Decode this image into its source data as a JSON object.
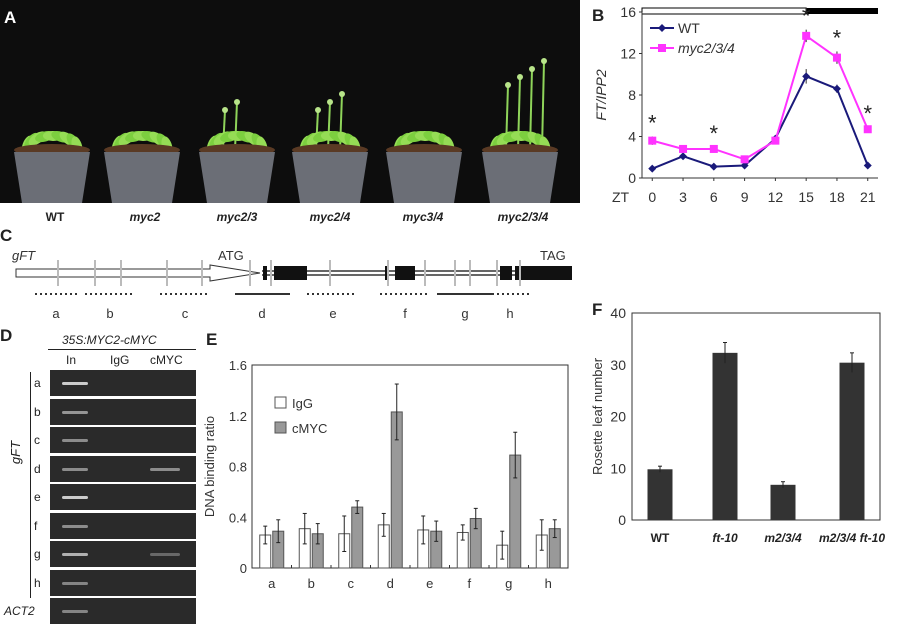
{
  "panels": {
    "A": {
      "label": "A",
      "genotypes": [
        "WT",
        "myc2",
        "myc2/3",
        "myc2/4",
        "myc3/4",
        "myc2/3/4"
      ]
    },
    "B": {
      "label": "B"
    },
    "C": {
      "label": "C",
      "gene": "gFT",
      "start": "ATG",
      "stop": "TAG",
      "regions": [
        "a",
        "b",
        "c",
        "d",
        "e",
        "f",
        "g",
        "h"
      ]
    },
    "D": {
      "label": "D",
      "construct": "35S:MYC2-cMYC",
      "lanes": [
        "In",
        "IgG",
        "cMYC"
      ],
      "rows": [
        "a",
        "b",
        "c",
        "d",
        "e",
        "f",
        "g",
        "h"
      ],
      "group": "gFT",
      "control": "ACT2"
    },
    "E": {
      "label": "E"
    },
    "F": {
      "label": "F"
    }
  },
  "chart_data": [
    {
      "id": "B",
      "type": "line",
      "title": "",
      "xlabel": "ZT",
      "ylabel": "FT/IPP2",
      "x": [
        0,
        3,
        6,
        9,
        12,
        15,
        18,
        21
      ],
      "xlim": [
        -1,
        22
      ],
      "ylim": [
        0,
        16
      ],
      "yticks": [
        0,
        4,
        8,
        12,
        16
      ],
      "legend": "top-left",
      "series": [
        {
          "name": "WT",
          "color": "#1a1a7a",
          "marker": "diamond",
          "values": [
            0.9,
            2.1,
            1.1,
            1.2,
            3.8,
            9.8,
            8.6,
            1.2
          ],
          "errors": [
            0.1,
            0.15,
            0.1,
            0.1,
            0.3,
            0.7,
            0.4,
            0.2
          ]
        },
        {
          "name": "myc2/3/4",
          "color": "#ff33ff",
          "marker": "square",
          "values": [
            3.6,
            2.8,
            2.8,
            1.8,
            3.6,
            13.7,
            11.6,
            4.7
          ],
          "errors": [
            0.4,
            0.2,
            0.2,
            0.2,
            0.3,
            0.6,
            0.6,
            0.2
          ]
        }
      ],
      "significance": [
        0,
        6,
        15,
        18,
        21
      ],
      "significance_marker": "*",
      "photoperiod": [
        "light",
        "dark"
      ]
    },
    {
      "id": "E",
      "type": "bar",
      "title": "",
      "xlabel": "",
      "ylabel": "DNA binding ratio",
      "categories": [
        "a",
        "b",
        "c",
        "d",
        "e",
        "f",
        "g",
        "h"
      ],
      "ylim": [
        0,
        1.6
      ],
      "yticks": [
        0,
        0.4,
        0.8,
        1.2,
        1.6
      ],
      "legend": "top-left",
      "series": [
        {
          "name": "IgG",
          "color": "#ffffff",
          "values": [
            0.26,
            0.31,
            0.27,
            0.34,
            0.3,
            0.28,
            0.18,
            0.26
          ],
          "errors": [
            0.07,
            0.12,
            0.14,
            0.09,
            0.11,
            0.06,
            0.11,
            0.12
          ]
        },
        {
          "name": "cMYC",
          "color": "#999999",
          "values": [
            0.29,
            0.27,
            0.48,
            1.23,
            0.29,
            0.39,
            0.89,
            0.31
          ],
          "errors": [
            0.09,
            0.08,
            0.05,
            0.22,
            0.08,
            0.08,
            0.18,
            0.07
          ]
        }
      ]
    },
    {
      "id": "F",
      "type": "bar",
      "title": "",
      "xlabel": "",
      "ylabel": "Rosette leaf number",
      "categories": [
        "WT",
        "ft-10",
        "m2/3/4",
        "m2/3/4 ft-10"
      ],
      "ylim": [
        0,
        40
      ],
      "yticks": [
        0,
        10,
        20,
        30,
        40
      ],
      "color": "#333333",
      "values": [
        9.8,
        32.3,
        6.8,
        30.4
      ],
      "errors": [
        0.6,
        2.0,
        0.6,
        1.9
      ]
    }
  ]
}
